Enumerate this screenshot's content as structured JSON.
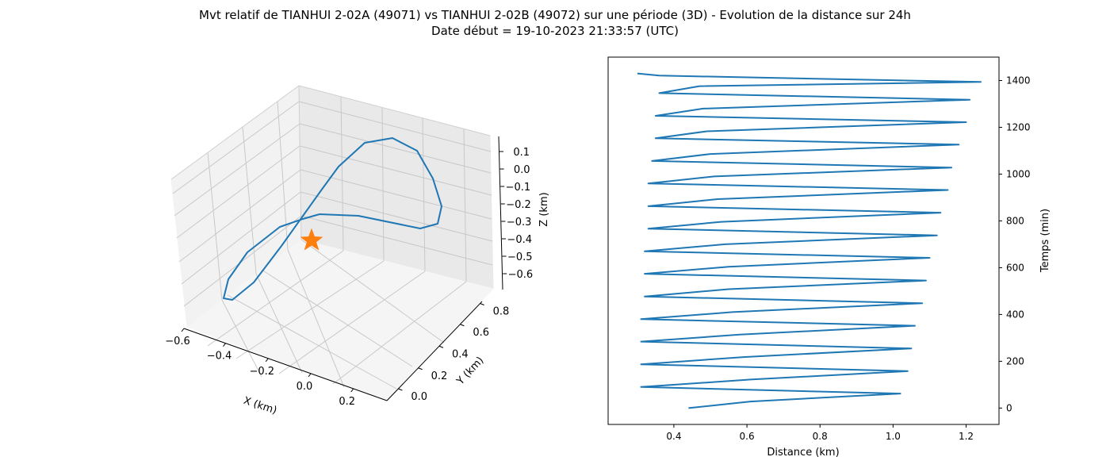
{
  "title": "Mvt relatif de TIANHUI 2-02A (49071) vs TIANHUI 2-02B (49072) sur une période (3D) - Evolution de la distance sur 24h",
  "subtitle": "Date début = 19-10-2023 21:33:57 (UTC)",
  "colors": {
    "series": "#1f77b4",
    "marker": "#ff7f0e",
    "pane": "#f2f2f2",
    "grid": "#b0b0b0"
  },
  "chart_data": [
    {
      "type": "line3d",
      "xlabel": "X (km)",
      "ylabel": "Y (km)",
      "zlabel": "Z (km)",
      "xlim": [
        -0.6,
        0.35
      ],
      "ylim": [
        -0.05,
        0.92
      ],
      "zlim": [
        -0.68,
        0.18
      ],
      "x_ticks": [
        "−0.6",
        "−0.4",
        "−0.2",
        "0.0",
        "0.2"
      ],
      "y_ticks": [
        "0.0",
        "0.2",
        "0.4",
        "0.6",
        "0.8"
      ],
      "z_ticks": [
        "0.1",
        "0.0",
        "−0.1",
        "−0.2",
        "−0.3",
        "−0.4",
        "−0.5",
        "−0.6"
      ],
      "marker": {
        "shape": "star",
        "label": "origin"
      },
      "grid": true
    },
    {
      "type": "line",
      "xlabel": "Distance (km)",
      "ylabel": "Temps (min)",
      "xlim": [
        0.22,
        1.29
      ],
      "ylim": [
        -70,
        1500
      ],
      "x_ticks": [
        0.4,
        0.6,
        0.8,
        1.0,
        1.2
      ],
      "y_ticks": [
        0,
        200,
        400,
        600,
        800,
        1000,
        1200,
        1400
      ],
      "series": [
        {
          "points": [
            [
              0.44,
              0
            ],
            [
              0.61,
              28
            ],
            [
              1.02,
              62
            ],
            [
              0.31,
              90
            ],
            [
              0.61,
              122
            ],
            [
              1.04,
              158
            ],
            [
              0.31,
              187
            ],
            [
              0.59,
              218
            ],
            [
              1.05,
              255
            ],
            [
              0.31,
              284
            ],
            [
              0.58,
              314
            ],
            [
              1.06,
              352
            ],
            [
              0.31,
              380
            ],
            [
              0.56,
              410
            ],
            [
              1.08,
              448
            ],
            [
              0.32,
              477
            ],
            [
              0.55,
              508
            ],
            [
              1.09,
              545
            ],
            [
              0.32,
              574
            ],
            [
              0.55,
              604
            ],
            [
              1.1,
              642
            ],
            [
              0.32,
              670
            ],
            [
              0.54,
              700
            ],
            [
              1.12,
              738
            ],
            [
              0.33,
              767
            ],
            [
              0.53,
              796
            ],
            [
              1.13,
              835
            ],
            [
              0.33,
              863
            ],
            [
              0.52,
              893
            ],
            [
              1.15,
              932
            ],
            [
              0.33,
              960
            ],
            [
              0.51,
              990
            ],
            [
              1.16,
              1028
            ],
            [
              0.34,
              1056
            ],
            [
              0.5,
              1086
            ],
            [
              1.18,
              1126
            ],
            [
              0.35,
              1153
            ],
            [
              0.49,
              1183
            ],
            [
              1.2,
              1222
            ],
            [
              0.35,
              1249
            ],
            [
              0.48,
              1280
            ],
            [
              1.21,
              1318
            ],
            [
              0.36,
              1346
            ],
            [
              0.47,
              1376
            ],
            [
              1.24,
              1394
            ],
            [
              0.36,
              1421
            ],
            [
              0.3,
              1430
            ]
          ]
        }
      ]
    }
  ]
}
